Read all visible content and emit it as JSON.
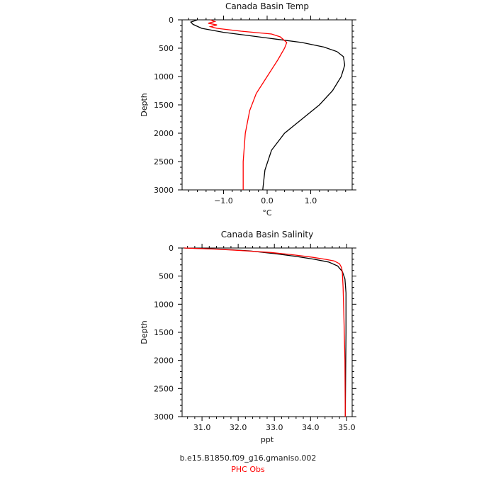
{
  "chart_data": [
    {
      "type": "line",
      "title": "Canada Basin Temp",
      "xlabel": "°C",
      "ylabel": "Depth",
      "xlim": [
        -1.95,
        1.95
      ],
      "ylim": [
        3000,
        0
      ],
      "xticks": [
        -1.0,
        0.0,
        1.0
      ],
      "xtick_labels": [
        "−1.0",
        "0.0",
        "1.0"
      ],
      "yticks": [
        0,
        500,
        1000,
        1500,
        2000,
        2500,
        3000
      ],
      "ytick_labels": [
        "0",
        "500",
        "1000",
        "1500",
        "2000",
        "2500",
        "3000"
      ],
      "series": [
        {
          "name": "b.e15.B1850.f09_g16.gmaniso.002",
          "color": "#000000",
          "x": [
            -1.6,
            -1.75,
            -1.7,
            -1.5,
            -1.0,
            -0.4,
            0.2,
            0.8,
            1.3,
            1.6,
            1.75,
            1.78,
            1.7,
            1.5,
            1.2,
            0.8,
            0.4,
            0.1,
            -0.05,
            -0.1
          ],
          "y": [
            0,
            40,
            80,
            150,
            220,
            280,
            340,
            400,
            480,
            560,
            650,
            800,
            1000,
            1250,
            1500,
            1750,
            2000,
            2300,
            2650,
            3000
          ]
        },
        {
          "name": "PHC Obs",
          "color": "#ff0000",
          "x": [
            -1.3,
            -1.2,
            -1.35,
            -1.15,
            -1.3,
            -1.15,
            -0.6,
            0.1,
            0.3,
            0.45,
            0.4,
            0.25,
            0.0,
            -0.25,
            -0.4,
            -0.5,
            -0.55,
            -0.55
          ],
          "y": [
            0,
            30,
            60,
            90,
            120,
            150,
            200,
            250,
            300,
            400,
            500,
            700,
            1000,
            1300,
            1600,
            2000,
            2500,
            3000
          ]
        }
      ]
    },
    {
      "type": "line",
      "title": "Canada Basin Salinity",
      "xlabel": "ppt",
      "ylabel": "Depth",
      "xlim": [
        30.45,
        35.15
      ],
      "ylim": [
        3000,
        0
      ],
      "xticks": [
        31.0,
        32.0,
        33.0,
        34.0,
        35.0
      ],
      "xtick_labels": [
        "31.0",
        "32.0",
        "33.0",
        "34.0",
        "35.0"
      ],
      "yticks": [
        0,
        500,
        1000,
        1500,
        2000,
        2500,
        3000
      ],
      "ytick_labels": [
        "0",
        "500",
        "1000",
        "1500",
        "2000",
        "2500",
        "3000"
      ],
      "series": [
        {
          "name": "b.e15.B1850.f09_g16.gmaniso.002",
          "color": "#000000",
          "x": [
            30.5,
            31.5,
            32.3,
            33.0,
            33.6,
            34.1,
            34.5,
            34.75,
            34.88,
            34.95,
            34.98,
            34.98,
            34.97,
            34.96
          ],
          "y": [
            0,
            20,
            50,
            100,
            150,
            200,
            250,
            320,
            420,
            550,
            800,
            1500,
            2200,
            3000
          ]
        },
        {
          "name": "PHC Obs",
          "color": "#ff0000",
          "x": [
            30.5,
            31.4,
            32.2,
            32.9,
            33.5,
            34.0,
            34.4,
            34.65,
            34.8,
            34.86,
            34.88,
            34.9,
            34.92,
            34.95,
            34.96
          ],
          "y": [
            0,
            20,
            50,
            80,
            120,
            160,
            200,
            230,
            280,
            350,
            450,
            700,
            1200,
            2000,
            3000
          ]
        }
      ]
    }
  ],
  "legend": {
    "entries": [
      {
        "label": "b.e15.B1850.f09_g16.gmaniso.002",
        "color": "#222222"
      },
      {
        "label": "PHC Obs",
        "color": "#ff0000"
      }
    ]
  }
}
